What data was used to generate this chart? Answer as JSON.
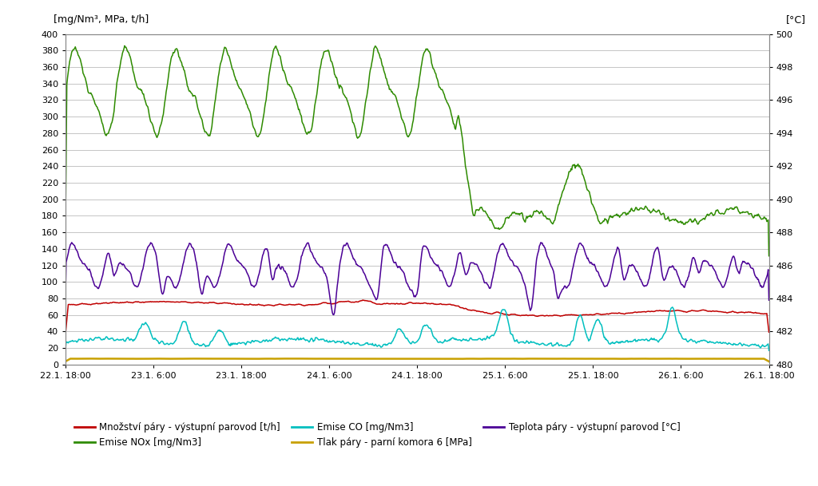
{
  "ylabel_left": "[mg/Nm³, MPa, t/h]",
  "ylabel_right": "[°C]",
  "ylim_left": [
    0,
    400
  ],
  "ylim_right": [
    480,
    500
  ],
  "yticks_left": [
    0,
    20,
    40,
    60,
    80,
    100,
    120,
    140,
    160,
    180,
    200,
    220,
    240,
    260,
    280,
    300,
    320,
    340,
    360,
    380,
    400
  ],
  "yticks_right": [
    480,
    482,
    484,
    486,
    488,
    490,
    492,
    494,
    496,
    498,
    500
  ],
  "xtick_labels": [
    "22.1. 18:00",
    "23.1. 6:00",
    "23.1. 18:00",
    "24.1. 6:00",
    "24.1. 18:00",
    "25.1. 6:00",
    "25.1. 18:00",
    "26.1. 6:00",
    "26.1. 18:00"
  ],
  "colors": {
    "red": "#C00000",
    "green": "#2E8B00",
    "cyan": "#00BFBF",
    "yellow": "#C8A000",
    "purple": "#4B0096"
  },
  "legend": [
    {
      "label": "Množství páry - výstupní parovod [t/h]",
      "color": "#C00000"
    },
    {
      "label": "Emise NOx [mg/Nm3]",
      "color": "#2E8B00"
    },
    {
      "label": "Emise CO [mg/Nm3]",
      "color": "#00BFBF"
    },
    {
      "label": "Tlak páry - parní komora 6 [MPa]",
      "color": "#C8A000"
    },
    {
      "label": "Teplota páry - výstupní parovod [°C]",
      "color": "#4B0096"
    }
  ],
  "background_color": "#FFFFFF",
  "grid_color": "#BBBBBB"
}
